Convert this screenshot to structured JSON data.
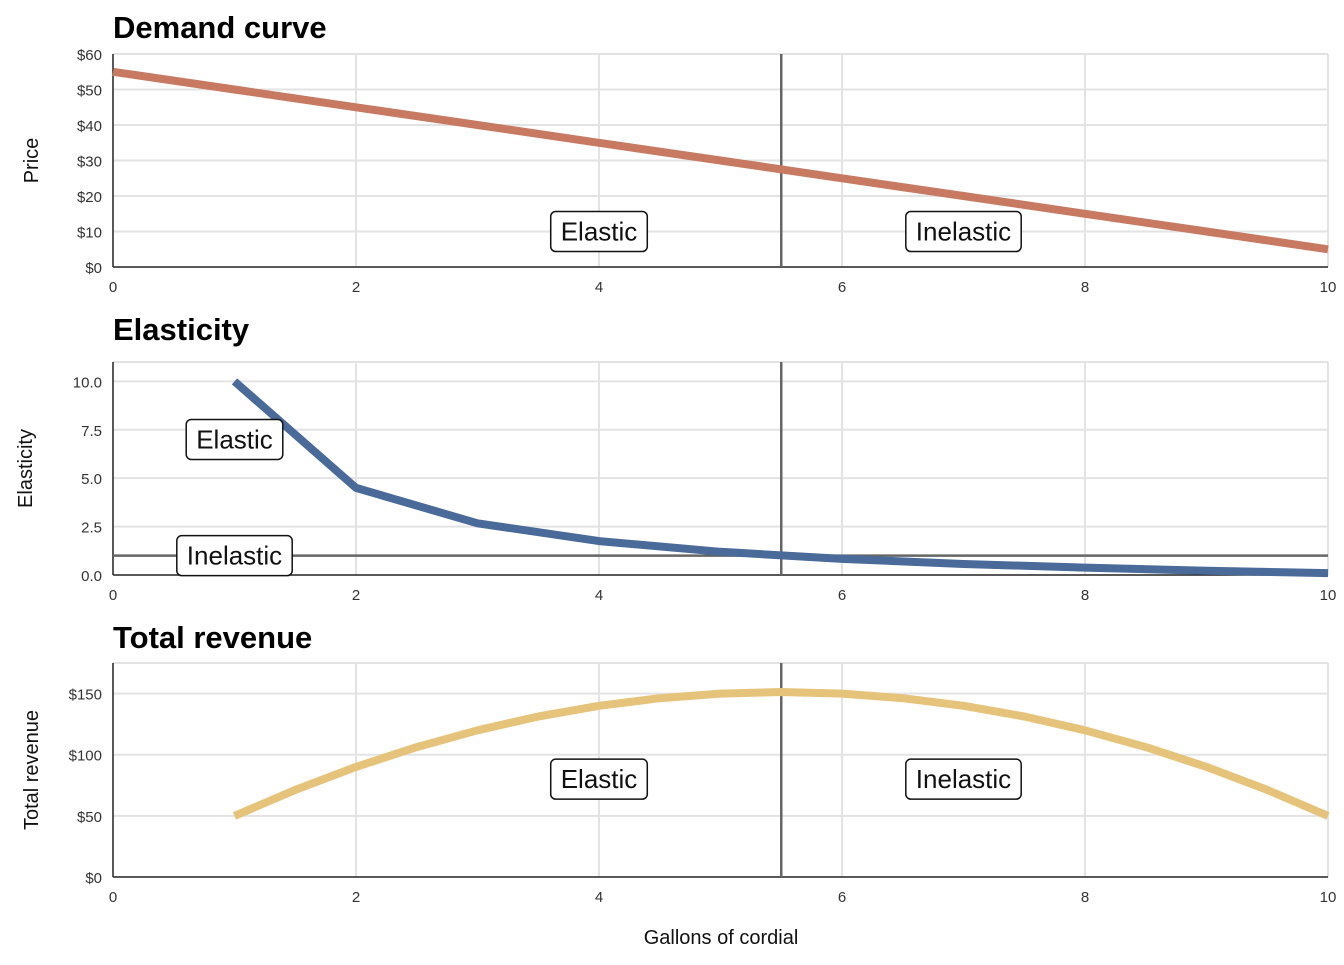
{
  "figure": {
    "xlabel": "Gallons of cordial"
  },
  "chart_data": [
    {
      "type": "line",
      "title": "Demand curve",
      "xlabel": "",
      "ylabel": "Price",
      "xlim": [
        0,
        10
      ],
      "ylim": [
        0,
        60
      ],
      "x_ticks": [
        0,
        2,
        4,
        6,
        8,
        10
      ],
      "x_tick_labels": [
        "0",
        "2",
        "4",
        "6",
        "8",
        "10"
      ],
      "y_ticks": [
        0,
        10,
        20,
        30,
        40,
        50,
        60
      ],
      "y_tick_labels": [
        "$0",
        "$10",
        "$20",
        "$30",
        "$40",
        "$50",
        "$60"
      ],
      "grid": true,
      "series": [
        {
          "x": [
            0,
            1,
            2,
            3,
            4,
            5,
            6,
            7,
            8,
            9,
            10
          ],
          "values": [
            55,
            50,
            45,
            40,
            35,
            30,
            25,
            20,
            15,
            10,
            5
          ],
          "color": "#c87961"
        }
      ],
      "vline": {
        "x": 5.5,
        "color": "#666666"
      },
      "annotations": [
        {
          "text": "Elastic",
          "x": 4,
          "y": 10
        },
        {
          "text": "Inelastic",
          "x": 7,
          "y": 10
        }
      ]
    },
    {
      "type": "line",
      "title": "Elasticity",
      "xlabel": "",
      "ylabel": "Elasticity",
      "xlim": [
        0,
        10
      ],
      "ylim": [
        0,
        11
      ],
      "x_ticks": [
        0,
        2,
        4,
        6,
        8,
        10
      ],
      "x_tick_labels": [
        "0",
        "2",
        "4",
        "6",
        "8",
        "10"
      ],
      "y_ticks": [
        0,
        2.5,
        5,
        7.5,
        10
      ],
      "y_tick_labels": [
        "0.0",
        "2.5",
        "5.0",
        "7.5",
        "10.0"
      ],
      "grid": true,
      "series": [
        {
          "x": [
            1,
            2,
            3,
            4,
            5,
            6,
            7,
            8,
            9,
            10
          ],
          "values": [
            10,
            4.5,
            2.67,
            1.75,
            1.2,
            0.83,
            0.57,
            0.38,
            0.22,
            0.1
          ],
          "color": "#4a6a9a"
        }
      ],
      "vline": {
        "x": 5.5,
        "color": "#666666"
      },
      "hline": {
        "y": 1,
        "color": "#666666"
      },
      "annotations": [
        {
          "text": "Elastic",
          "x": 1,
          "y": 7
        },
        {
          "text": "Inelastic",
          "x": 1,
          "y": 1
        }
      ]
    },
    {
      "type": "line",
      "title": "Total revenue",
      "xlabel": "Gallons of cordial",
      "ylabel": "Total revenue",
      "xlim": [
        0,
        10
      ],
      "ylim": [
        0,
        175
      ],
      "x_ticks": [
        0,
        2,
        4,
        6,
        8,
        10
      ],
      "x_tick_labels": [
        "0",
        "2",
        "4",
        "6",
        "8",
        "10"
      ],
      "y_ticks": [
        0,
        50,
        100,
        150
      ],
      "y_tick_labels": [
        "$0",
        "$50",
        "$100",
        "$150"
      ],
      "grid": true,
      "series": [
        {
          "x": [
            1,
            1.5,
            2,
            2.5,
            3,
            3.5,
            4,
            4.5,
            5,
            5.5,
            6,
            6.5,
            7,
            7.5,
            8,
            8.5,
            9,
            9.5,
            10
          ],
          "values": [
            50,
            71.25,
            90,
            106.25,
            120,
            131.25,
            140,
            146.25,
            150,
            151.25,
            150,
            146.25,
            140,
            131.25,
            120,
            106.25,
            90,
            71.25,
            50
          ],
          "color": "#e6c37a"
        }
      ],
      "vline": {
        "x": 5.5,
        "color": "#666666"
      },
      "annotations": [
        {
          "text": "Elastic",
          "x": 4,
          "y": 80
        },
        {
          "text": "Inelastic",
          "x": 7,
          "y": 80
        }
      ]
    }
  ]
}
